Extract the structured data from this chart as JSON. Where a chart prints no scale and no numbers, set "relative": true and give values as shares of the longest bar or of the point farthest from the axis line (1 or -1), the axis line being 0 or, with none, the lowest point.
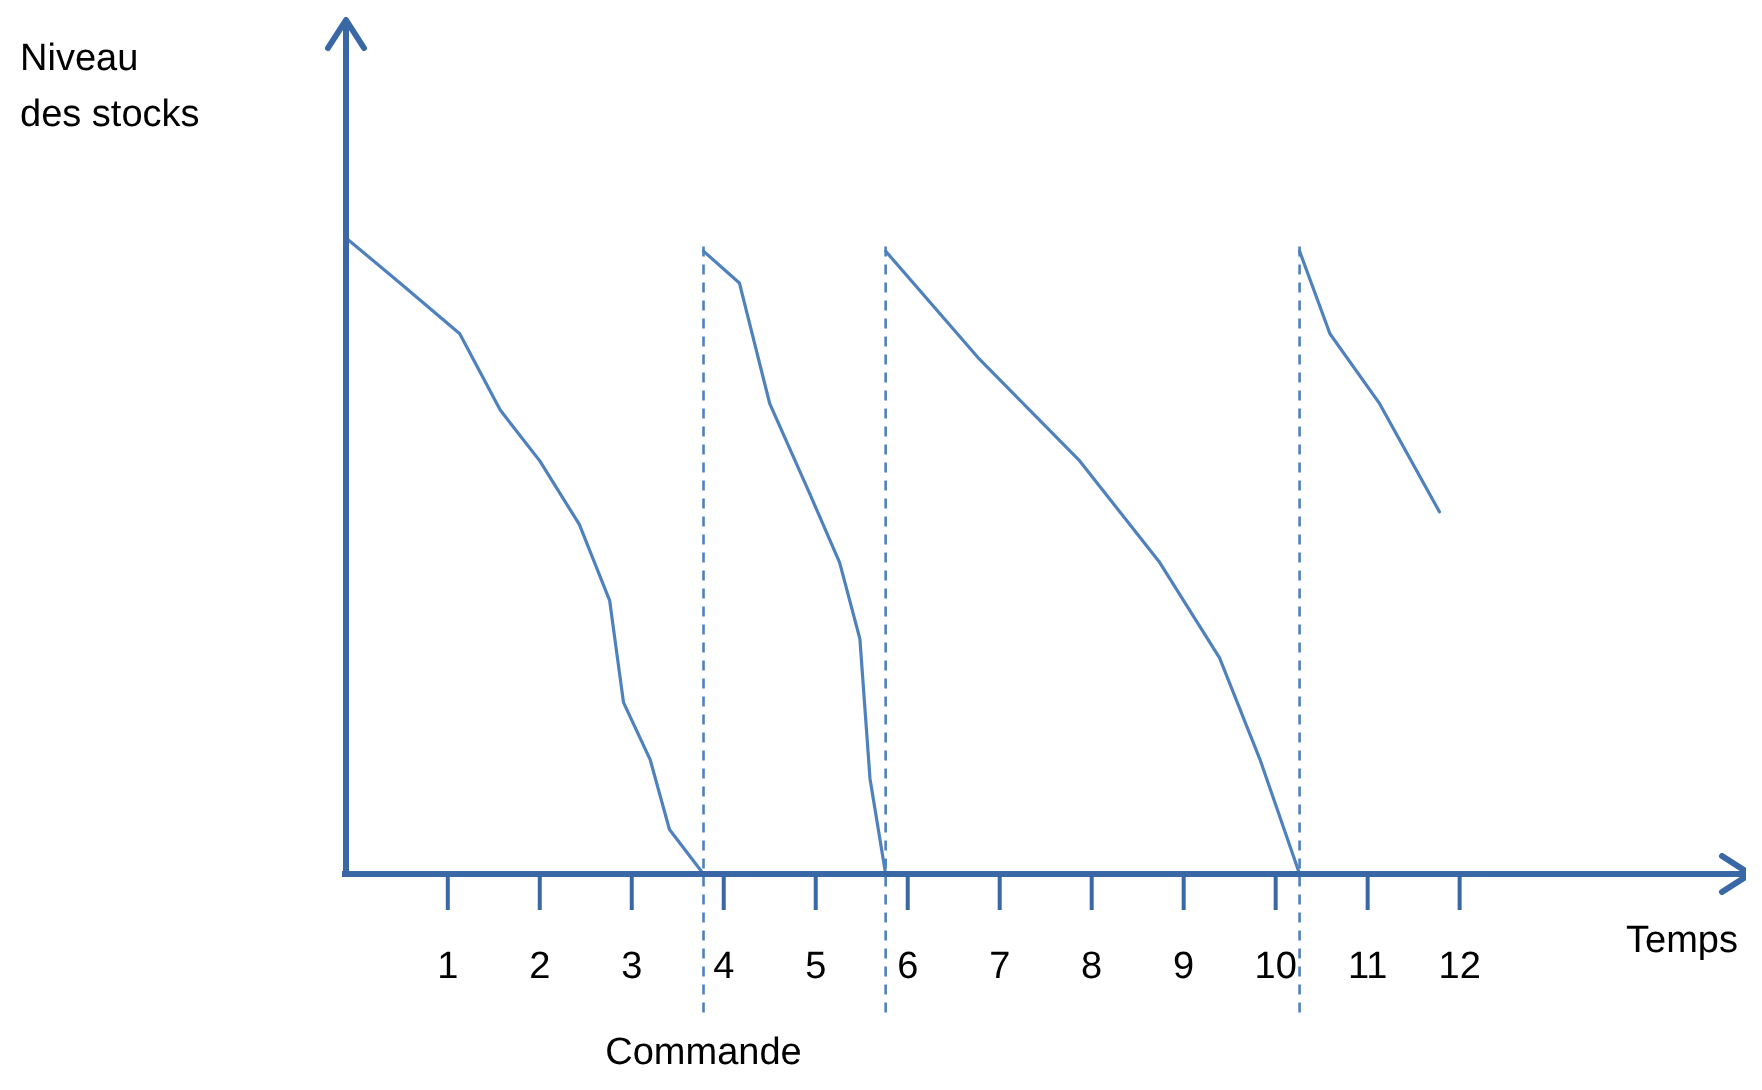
{
  "chart_data": {
    "type": "line",
    "relative": true,
    "xlabel": "Temps",
    "ylabel": "Niveau\ndes stocks",
    "xlim": [
      -0.15,
      15.2
    ],
    "xticks": [
      1,
      2,
      3,
      4,
      5,
      6,
      7,
      8,
      9,
      10,
      11,
      12
    ],
    "grid": false,
    "marker": "none",
    "line_style": "solid",
    "tick_labels": "x",
    "series": [
      {
        "color": "#4f81bd",
        "x": [
          -0.1,
          0.48,
          1.13,
          1.57,
          2.0,
          2.43,
          2.76,
          2.91,
          3.2,
          3.41,
          3.78,
          null,
          3.78,
          4.17,
          4.5,
          4.93,
          5.26,
          5.48,
          5.59,
          5.76,
          null,
          5.76,
          6.78,
          7.87,
          8.74,
          9.39,
          9.83,
          10.26,
          null,
          10.26,
          10.59,
          11.13,
          11.78
        ],
        "values": [
          1.0,
          0.93,
          0.85,
          0.73,
          0.65,
          0.55,
          0.43,
          0.27,
          0.18,
          0.07,
          0,
          null,
          0.98,
          0.93,
          0.74,
          0.6,
          0.49,
          0.37,
          0.15,
          0,
          null,
          0.98,
          0.81,
          0.65,
          0.49,
          0.34,
          0.18,
          0,
          null,
          0.98,
          0.85,
          0.74,
          0.57
        ]
      }
    ],
    "ref_lines": [
      {
        "axis": "x",
        "value": 3.78,
        "color": "#4f81bd",
        "line_style": "dashed"
      },
      {
        "axis": "x",
        "value": 5.76,
        "color": "#4f81bd",
        "line_style": "dashed"
      },
      {
        "axis": "x",
        "value": 10.26,
        "color": "#4f81bd",
        "line_style": "dashed"
      }
    ],
    "annotations": [
      "Commande"
    ]
  }
}
